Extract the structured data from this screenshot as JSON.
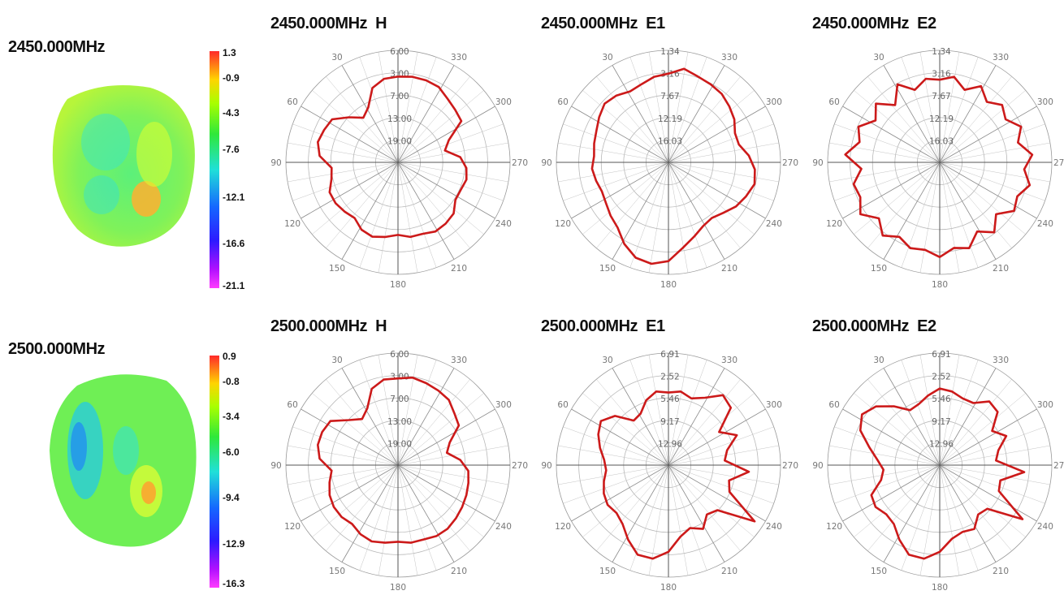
{
  "rows": [
    {
      "freq_title": "2450.000MHz",
      "colorbar_ticks": [
        "1.3",
        "-0.9",
        "-4.3",
        "-7.6",
        "-12.1",
        "-16.6",
        "-21.1"
      ]
    },
    {
      "freq_title": "2500.000MHz",
      "colorbar_ticks": [
        "0.9",
        "-0.8",
        "-3.4",
        "-6.0",
        "-9.4",
        "-12.9",
        "-16.3"
      ]
    }
  ],
  "colorbar_colors": [
    "#ff2a2a",
    "#ffd400",
    "#a8ff00",
    "#2fe83a",
    "#20e0d8",
    "#1565ff",
    "#2d1aff",
    "#b010ff",
    "#ff3cff"
  ],
  "trace_color": "#cc1a1a",
  "chart_data": [
    {
      "type": "polar",
      "title": "2450.000MHz  H",
      "radial_labels": [
        "6.00",
        "3.00",
        "7.00",
        "13.00",
        "19.00"
      ],
      "angle_labels": [
        "30",
        "330",
        "60",
        "300",
        "90",
        "270",
        "120",
        "240",
        "150",
        "210",
        "180"
      ],
      "values": [
        0.85,
        0.86,
        0.86,
        0.85,
        0.8,
        0.77,
        0.75,
        0.55,
        0.48,
        0.62,
        0.68,
        0.7,
        0.68,
        0.68,
        0.75,
        0.77,
        0.78,
        0.75,
        0.75,
        0.72,
        0.75,
        0.78,
        0.76,
        0.7,
        0.72,
        0.74,
        0.74,
        0.68,
        0.66,
        0.78,
        0.82,
        0.8,
        0.78,
        0.66,
        0.56,
        0.62,
        0.78,
        0.84
      ]
    },
    {
      "type": "polar",
      "title": "2450.000MHz  E1",
      "radial_labels": [
        "1.34",
        "3.16",
        "7.67",
        "12.19",
        "16.03"
      ],
      "angle_labels": [
        "30",
        "330",
        "60",
        "300",
        "90",
        "270",
        "120",
        "240",
        "150",
        "210",
        "180"
      ],
      "values": [
        0.88,
        0.94,
        0.9,
        0.88,
        0.86,
        0.82,
        0.78,
        0.72,
        0.72,
        0.8,
        0.86,
        0.88,
        0.84,
        0.8,
        0.74,
        0.7,
        0.72,
        0.78,
        0.86,
        0.98,
        1.02,
        1.0,
        0.92,
        0.82,
        0.78,
        0.74,
        0.72,
        0.74,
        0.76,
        0.74,
        0.76,
        0.78,
        0.82,
        0.86,
        0.84,
        0.8,
        0.82,
        0.86
      ]
    },
    {
      "type": "polar",
      "title": "2450.000MHz  E2",
      "radial_labels": [
        "1.34",
        "3.16",
        "7.67",
        "12.19",
        "16.03"
      ],
      "angle_labels": [
        "30",
        "330",
        "60",
        "300",
        "90",
        "270",
        "120",
        "240",
        "150",
        "210",
        "180"
      ],
      "values": [
        0.82,
        0.86,
        0.76,
        0.86,
        0.76,
        0.84,
        0.78,
        0.88,
        0.8,
        0.92,
        0.84,
        0.92,
        0.84,
        0.88,
        0.76,
        0.88,
        0.78,
        0.9,
        0.86,
        0.94,
        0.88,
        0.9,
        0.84,
        0.92,
        0.82,
        0.94,
        0.86,
        0.88,
        0.78,
        0.94,
        0.82,
        0.88,
        0.76,
        0.86,
        0.72,
        0.88,
        0.76,
        0.84
      ]
    },
    {
      "type": "polar",
      "title": "2500.000MHz  H",
      "radial_labels": [
        "6.00",
        "3.00",
        "7.00",
        "13.00",
        "19.00"
      ],
      "angle_labels": [
        "30",
        "330",
        "60",
        "300",
        "90",
        "270",
        "120",
        "240",
        "150",
        "210",
        "180"
      ],
      "values": [
        0.86,
        0.88,
        0.86,
        0.84,
        0.82,
        0.76,
        0.72,
        0.56,
        0.5,
        0.62,
        0.7,
        0.72,
        0.74,
        0.76,
        0.78,
        0.8,
        0.8,
        0.78,
        0.78,
        0.76,
        0.78,
        0.8,
        0.78,
        0.74,
        0.76,
        0.76,
        0.74,
        0.7,
        0.66,
        0.78,
        0.82,
        0.82,
        0.8,
        0.66,
        0.58,
        0.64,
        0.8,
        0.86
      ]
    },
    {
      "type": "polar",
      "title": "2500.000MHz  E1",
      "radial_labels": [
        "6.91",
        "2.52",
        "5.46",
        "9.17",
        "12.96"
      ],
      "angle_labels": [
        "30",
        "330",
        "60",
        "300",
        "90",
        "270",
        "120",
        "240",
        "150",
        "210",
        "180"
      ],
      "values": [
        0.72,
        0.74,
        0.7,
        0.76,
        0.88,
        0.84,
        0.6,
        0.74,
        0.6,
        0.56,
        0.8,
        0.62,
        0.66,
        1.02,
        0.66,
        0.62,
        0.72,
        0.66,
        0.72,
        0.86,
        0.94,
        0.94,
        0.84,
        0.74,
        0.7,
        0.72,
        0.7,
        0.66,
        0.62,
        0.64,
        0.7,
        0.76,
        0.8,
        0.72,
        0.56,
        0.58,
        0.68,
        0.74
      ]
    },
    {
      "type": "polar",
      "title": "2500.000MHz  E2",
      "radial_labels": [
        "6.91",
        "2.52",
        "5.46",
        "9.17",
        "12.96"
      ],
      "angle_labels": [
        "30",
        "330",
        "60",
        "300",
        "90",
        "270",
        "120",
        "240",
        "150",
        "210",
        "180"
      ],
      "values": [
        0.76,
        0.74,
        0.7,
        0.7,
        0.8,
        0.78,
        0.62,
        0.72,
        0.6,
        0.56,
        0.84,
        0.62,
        0.64,
        0.98,
        0.64,
        0.62,
        0.72,
        0.7,
        0.74,
        0.86,
        0.94,
        0.94,
        0.84,
        0.74,
        0.72,
        0.76,
        0.74,
        0.6,
        0.56,
        0.62,
        0.72,
        0.86,
        0.92,
        0.86,
        0.74,
        0.62,
        0.64,
        0.7
      ]
    }
  ]
}
